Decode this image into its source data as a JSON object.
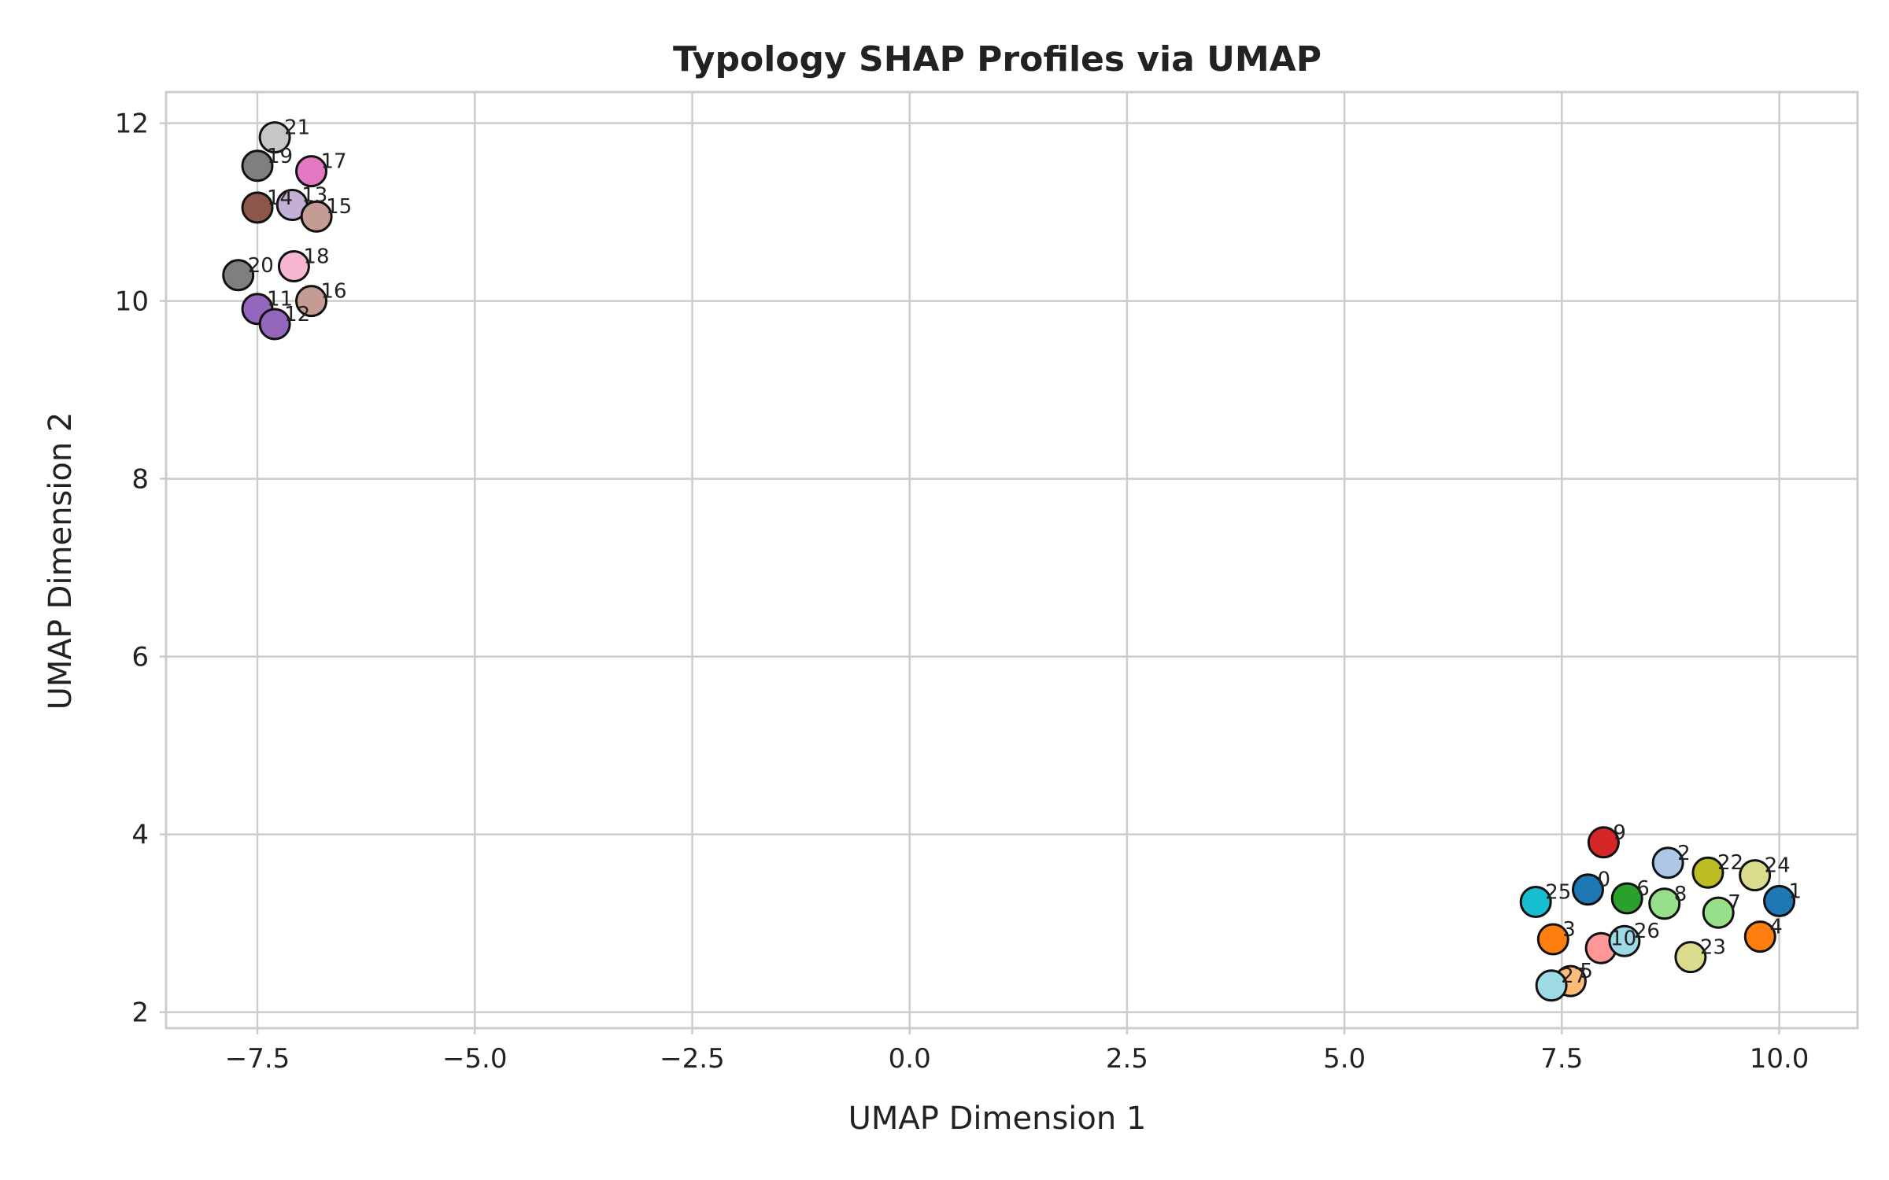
{
  "chart_data": {
    "type": "scatter",
    "title": "Typology SHAP Profiles via UMAP",
    "xlabel": "UMAP Dimension 1",
    "ylabel": "UMAP Dimension 2",
    "xlim": [
      -8.55,
      10.9
    ],
    "ylim": [
      1.82,
      12.35
    ],
    "xticks": [
      -7.5,
      -5.0,
      -2.5,
      0.0,
      2.5,
      5.0,
      7.5,
      10.0
    ],
    "xtick_labels": [
      "−7.5",
      "−5.0",
      "−2.5",
      "0.0",
      "2.5",
      "5.0",
      "7.5",
      "10.0"
    ],
    "yticks": [
      2,
      4,
      6,
      8,
      10,
      12
    ],
    "ytick_labels": [
      "2",
      "4",
      "6",
      "8",
      "10",
      "12"
    ],
    "grid": true,
    "legend": "none",
    "points": [
      {
        "label": "0",
        "x": 7.8,
        "y": 3.38,
        "color": "#1f77b4"
      },
      {
        "label": "1",
        "x": 10.0,
        "y": 3.25,
        "color": "#1f77b4"
      },
      {
        "label": "2",
        "x": 8.72,
        "y": 3.68,
        "color": "#aec7e8"
      },
      {
        "label": "3",
        "x": 7.4,
        "y": 2.82,
        "color": "#ff7f0e"
      },
      {
        "label": "4",
        "x": 9.78,
        "y": 2.85,
        "color": "#ff7f0e"
      },
      {
        "label": "5",
        "x": 7.6,
        "y": 2.35,
        "color": "#ffbb78"
      },
      {
        "label": "6",
        "x": 8.25,
        "y": 3.28,
        "color": "#2ca02c"
      },
      {
        "label": "7",
        "x": 9.3,
        "y": 3.12,
        "color": "#98df8a"
      },
      {
        "label": "8",
        "x": 8.68,
        "y": 3.22,
        "color": "#98df8a"
      },
      {
        "label": "9",
        "x": 7.98,
        "y": 3.91,
        "color": "#d62728"
      },
      {
        "label": "10",
        "x": 7.95,
        "y": 2.72,
        "color": "#ff9896"
      },
      {
        "label": "11",
        "x": -7.5,
        "y": 9.91,
        "color": "#9467bd"
      },
      {
        "label": "12",
        "x": -7.3,
        "y": 9.74,
        "color": "#9467bd"
      },
      {
        "label": "13",
        "x": -7.1,
        "y": 11.08,
        "color": "#c5b0d5"
      },
      {
        "label": "14",
        "x": -7.5,
        "y": 11.05,
        "color": "#8c564b"
      },
      {
        "label": "15",
        "x": -6.82,
        "y": 10.95,
        "color": "#c49c94"
      },
      {
        "label": "16",
        "x": -6.88,
        "y": 10.0,
        "color": "#c49c94"
      },
      {
        "label": "17",
        "x": -6.88,
        "y": 11.46,
        "color": "#e377c2"
      },
      {
        "label": "18",
        "x": -7.08,
        "y": 10.39,
        "color": "#f7b6d2"
      },
      {
        "label": "19",
        "x": -7.5,
        "y": 11.52,
        "color": "#7f7f7f"
      },
      {
        "label": "20",
        "x": -7.72,
        "y": 10.29,
        "color": "#7f7f7f"
      },
      {
        "label": "21",
        "x": -7.3,
        "y": 11.84,
        "color": "#c7c7c7"
      },
      {
        "label": "22",
        "x": 9.18,
        "y": 3.57,
        "color": "#bcbd22"
      },
      {
        "label": "23",
        "x": 8.98,
        "y": 2.62,
        "color": "#dbdb8d"
      },
      {
        "label": "24",
        "x": 9.72,
        "y": 3.54,
        "color": "#dbdb8d"
      },
      {
        "label": "25",
        "x": 7.2,
        "y": 3.24,
        "color": "#17becf"
      },
      {
        "label": "26",
        "x": 8.22,
        "y": 2.8,
        "color": "#9edae5"
      },
      {
        "label": "27",
        "x": 7.38,
        "y": 2.3,
        "color": "#9edae5"
      }
    ]
  }
}
